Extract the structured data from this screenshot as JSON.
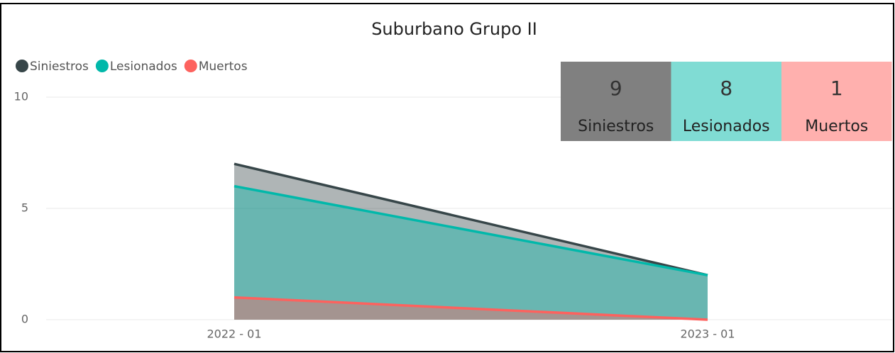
{
  "chart_data": {
    "type": "area",
    "title": "Suburbano Grupo II",
    "categories": [
      "2022 - 01",
      "2023 - 01"
    ],
    "series": [
      {
        "name": "Siniestros",
        "color": "#374649",
        "values": [
          7,
          2
        ]
      },
      {
        "name": "Lesionados",
        "color": "#01B8AA",
        "values": [
          6,
          2
        ]
      },
      {
        "name": "Muertos",
        "color": "#FD625E",
        "values": [
          1,
          0
        ]
      }
    ],
    "ylim": [
      0,
      10
    ],
    "yticks": [
      0,
      5,
      10
    ],
    "grid": true,
    "legend": "top-left",
    "cards": [
      {
        "value": 9,
        "label": "Siniestros",
        "color": "#808080"
      },
      {
        "value": 8,
        "label": "Lesionados",
        "color": "#80DCD4"
      },
      {
        "value": 1,
        "label": "Muertos",
        "color": "#FFB0AE"
      }
    ]
  }
}
